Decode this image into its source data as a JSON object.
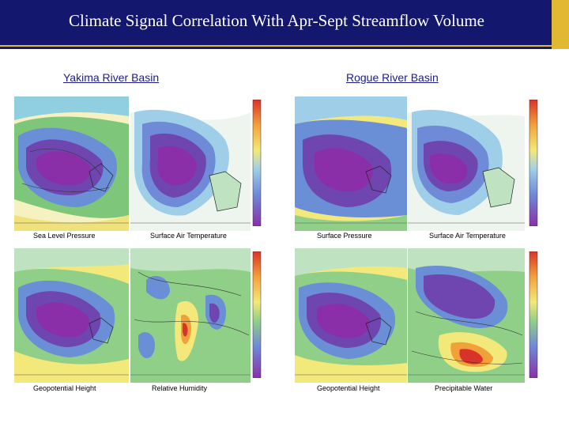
{
  "slide": {
    "title": "Climate Signal Correlation With Apr-Sept Streamflow  Volume"
  },
  "basins": [
    {
      "name": "Yakima River Basin",
      "panels": [
        {
          "label": "Sea Level Pressure"
        },
        {
          "label": "Surface Air Temperature"
        },
        {
          "label": "Geopotential Height"
        },
        {
          "label": "Relative Humidity"
        }
      ]
    },
    {
      "name": "Rogue River Basin",
      "panels": [
        {
          "label": "Surface Pressure"
        },
        {
          "label": "Surface Air Temperature"
        },
        {
          "label": "Geopotential Height"
        },
        {
          "label": "Precipitable Water"
        }
      ]
    }
  ],
  "colors": {
    "title_bar": "#13176e",
    "accent": "#e0b832",
    "basin_text": "#1c1c8a"
  }
}
